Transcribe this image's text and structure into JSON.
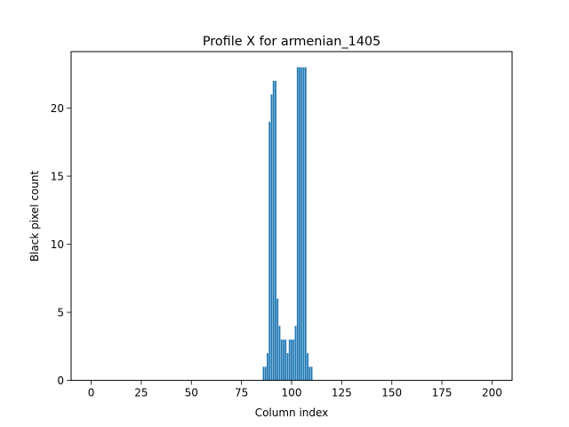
{
  "chart_data": {
    "type": "bar",
    "title": "Profile X for armenian_1405",
    "xlabel": "Column index",
    "ylabel": "Black pixel count",
    "xlim": [
      -10,
      210
    ],
    "ylim": [
      0,
      24.15
    ],
    "xticks": [
      0,
      25,
      50,
      75,
      100,
      125,
      150,
      175,
      200
    ],
    "yticks": [
      0,
      5,
      10,
      15,
      20
    ],
    "bar_color": "#1f77b4",
    "bar_width": 0.8,
    "grid": false,
    "legend": "none",
    "x": [
      86,
      87,
      88,
      89,
      90,
      91,
      92,
      93,
      94,
      95,
      96,
      97,
      98,
      99,
      100,
      101,
      102,
      103,
      104,
      105,
      106,
      107,
      108,
      109,
      110
    ],
    "values": [
      1,
      1,
      2,
      19,
      21,
      22,
      22,
      6,
      4,
      3,
      3,
      3,
      2,
      3,
      3,
      3,
      4,
      23,
      23,
      23,
      23,
      23,
      2,
      1,
      1
    ]
  }
}
